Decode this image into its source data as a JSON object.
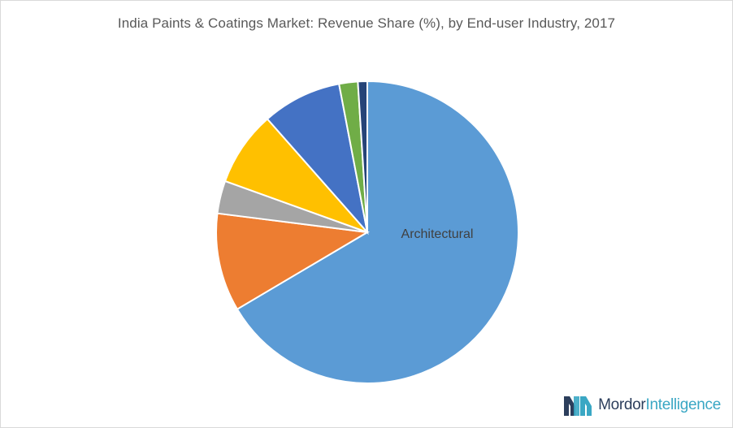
{
  "chart_data": {
    "type": "pie",
    "title": "India Paints & Coatings Market: Revenue Share (%), by End-user Industry, 2017",
    "start_angle_deg": 0,
    "direction": "clockwise",
    "slices": [
      {
        "label": "Architectural",
        "value": 66.5,
        "color": "#5b9bd5",
        "label_visible": true
      },
      {
        "label": "",
        "value": 10.5,
        "color": "#ed7d31",
        "label_visible": false
      },
      {
        "label": "",
        "value": 3.5,
        "color": "#a5a5a5",
        "label_visible": false
      },
      {
        "label": "",
        "value": 8.0,
        "color": "#ffc000",
        "label_visible": false
      },
      {
        "label": "",
        "value": 8.5,
        "color": "#4472c4",
        "label_visible": false
      },
      {
        "label": "",
        "value": 2.0,
        "color": "#70ad47",
        "label_visible": false
      },
      {
        "label": "",
        "value": 1.0,
        "color": "#264478",
        "label_visible": false
      }
    ]
  },
  "brand": {
    "name_part1": "Mordor",
    "name_part2": "Intelligence",
    "icon": "mordor-intelligence-logo-icon",
    "colors": {
      "dark": "#2c3e5c",
      "light": "#3aa7c4"
    }
  }
}
